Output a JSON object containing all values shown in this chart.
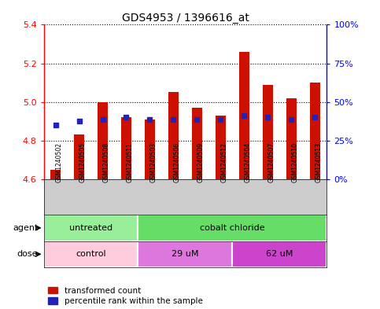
{
  "title": "GDS4953 / 1396616_at",
  "samples": [
    "GSM1240502",
    "GSM1240505",
    "GSM1240508",
    "GSM1240511",
    "GSM1240503",
    "GSM1240506",
    "GSM1240509",
    "GSM1240512",
    "GSM1240504",
    "GSM1240507",
    "GSM1240510",
    "GSM1240513"
  ],
  "bar_values": [
    4.65,
    4.83,
    5.0,
    4.92,
    4.91,
    5.05,
    4.97,
    4.93,
    5.26,
    5.09,
    5.02,
    5.1
  ],
  "percentile_values": [
    4.88,
    4.9,
    4.91,
    4.92,
    4.91,
    4.91,
    4.91,
    4.91,
    4.93,
    4.92,
    4.91,
    4.92
  ],
  "bar_color": "#cc1100",
  "dot_color": "#2222bb",
  "ymin": 4.6,
  "ymax": 5.4,
  "yticks": [
    4.6,
    4.8,
    5.0,
    5.2,
    5.4
  ],
  "right_yticks_pct": [
    0,
    25,
    50,
    75,
    100
  ],
  "right_ylabels": [
    "0%",
    "25%",
    "50%",
    "75%",
    "100%"
  ],
  "agent_groups": [
    {
      "label": "untreated",
      "start": 0,
      "end": 4,
      "color": "#99ee99"
    },
    {
      "label": "cobalt chloride",
      "start": 4,
      "end": 12,
      "color": "#66dd66"
    }
  ],
  "dose_groups": [
    {
      "label": "control",
      "start": 0,
      "end": 4,
      "color": "#ffccdd"
    },
    {
      "label": "29 uM",
      "start": 4,
      "end": 8,
      "color": "#dd77dd"
    },
    {
      "label": "62 uM",
      "start": 8,
      "end": 12,
      "color": "#cc44cc"
    }
  ],
  "sample_bg": "#cccccc",
  "plot_bg": "#ffffff",
  "bar_width": 0.45,
  "dot_size": 5
}
